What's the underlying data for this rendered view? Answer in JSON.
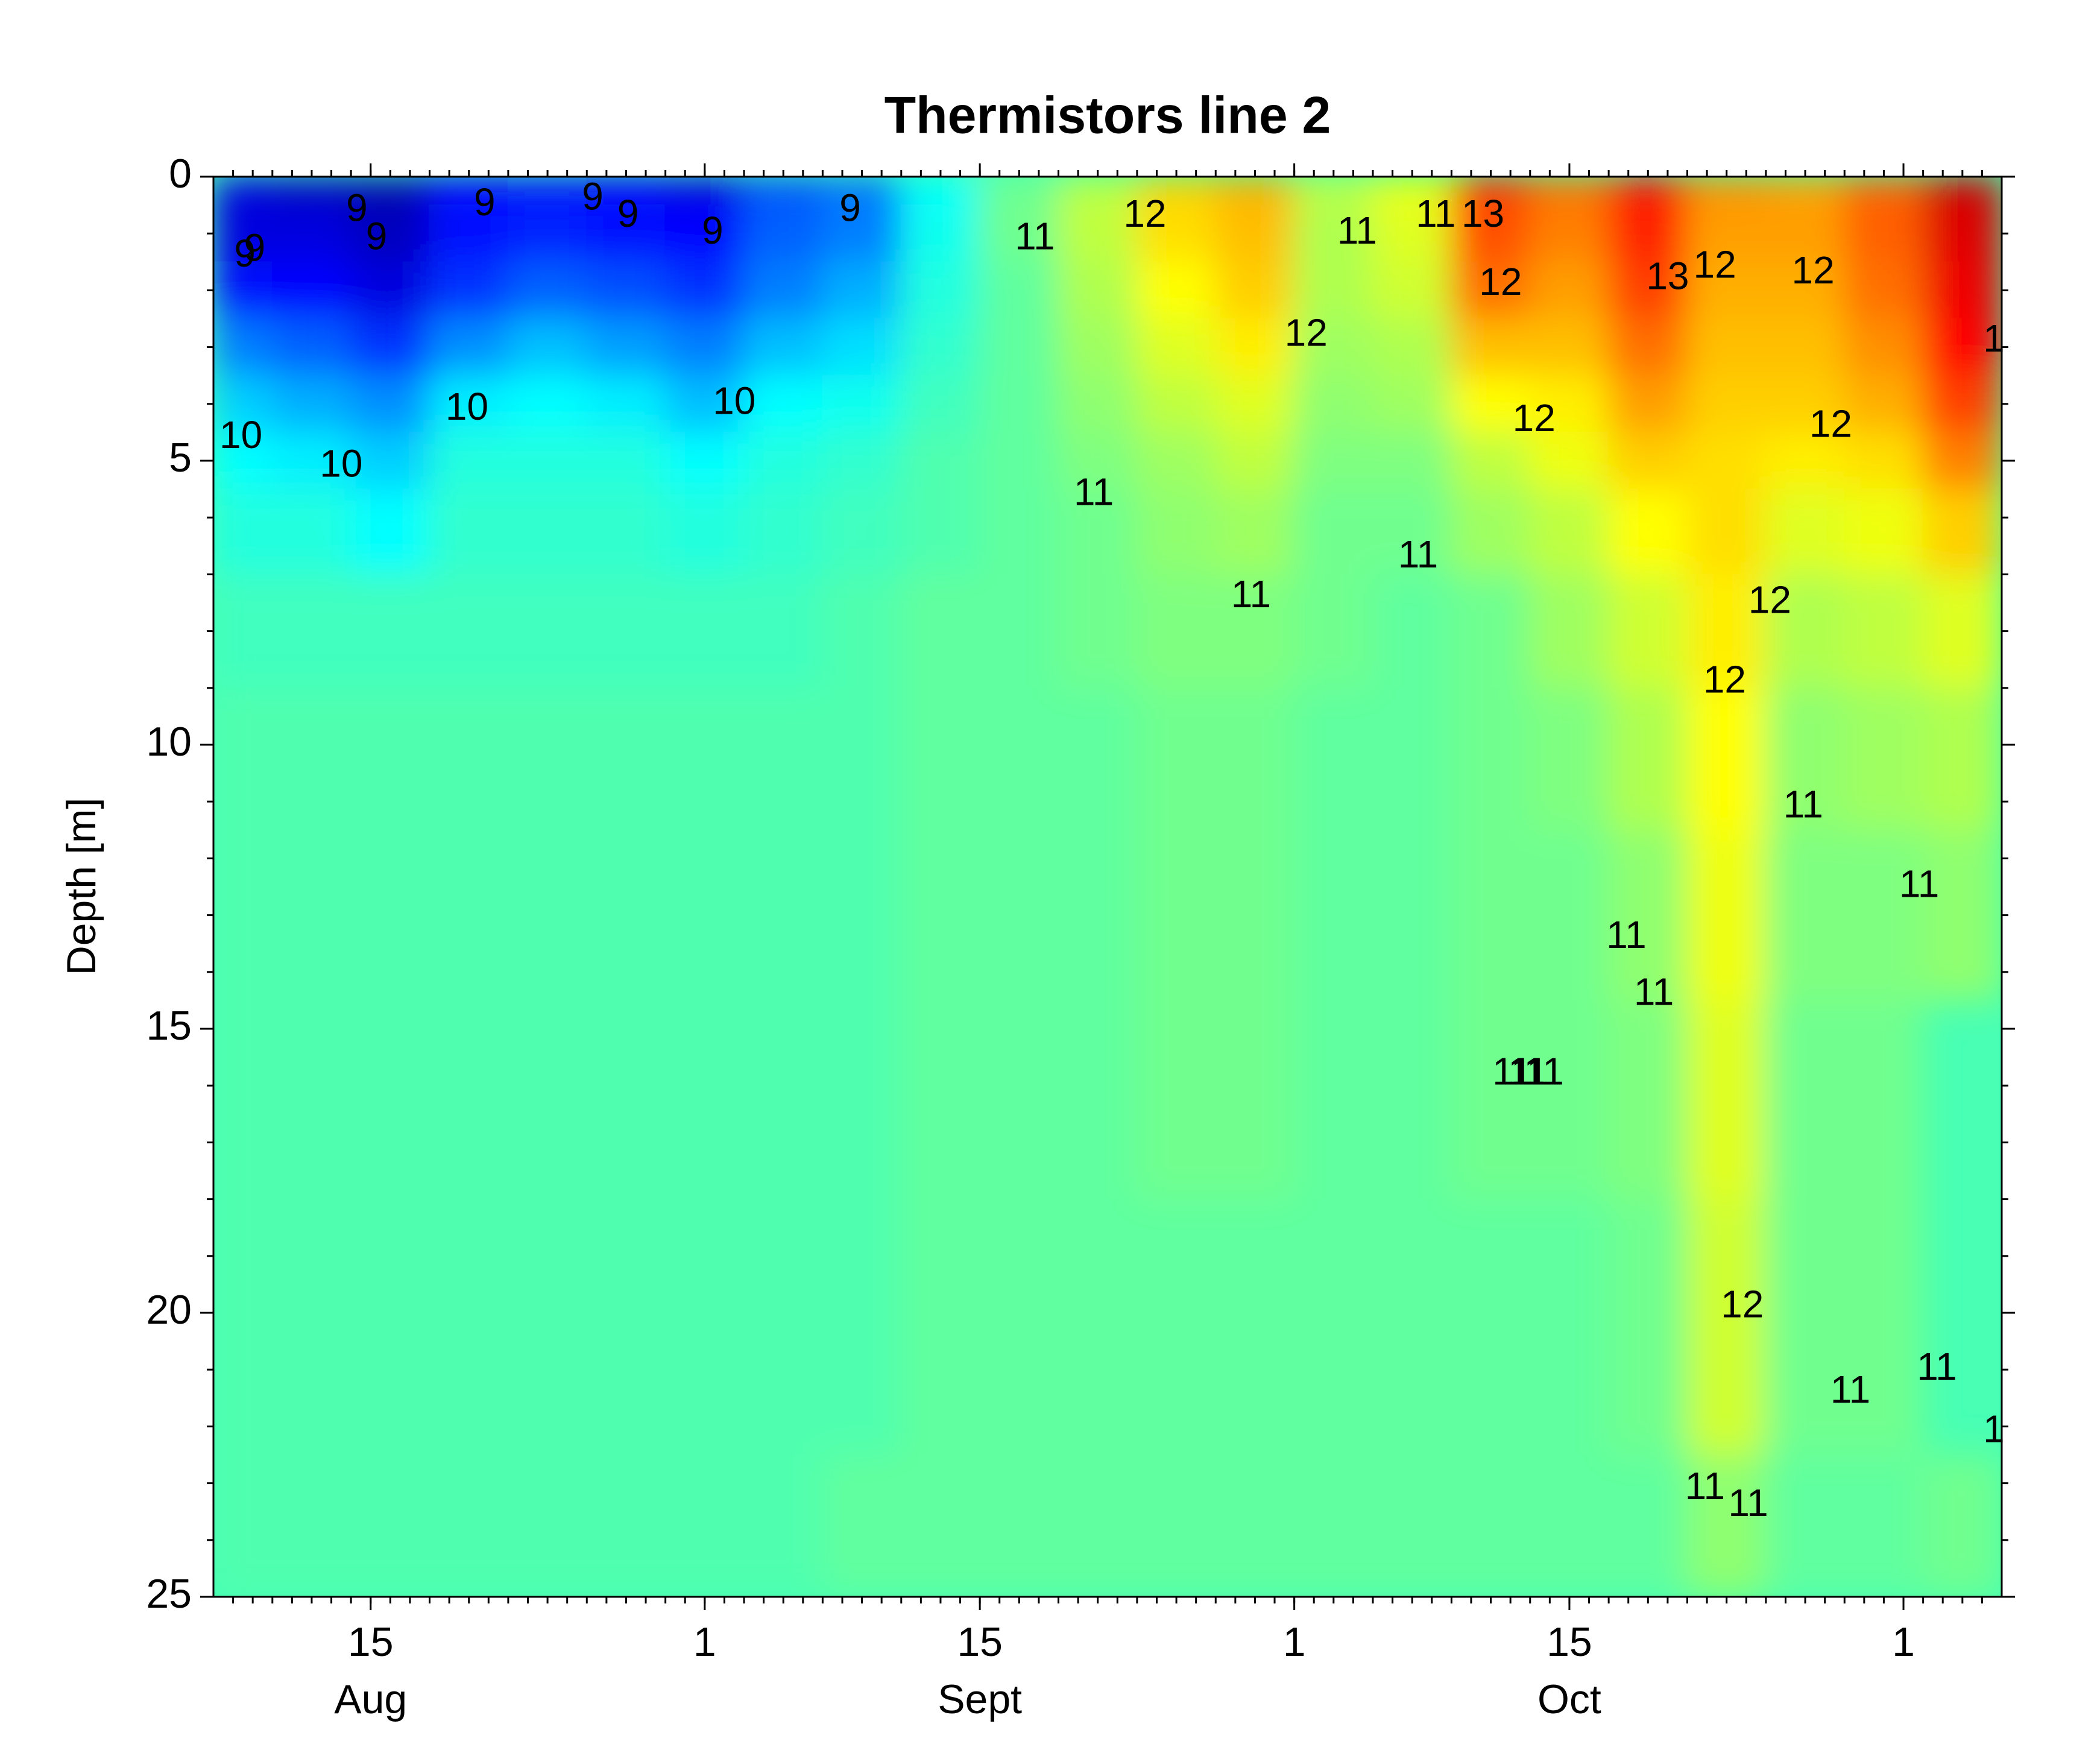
{
  "chart_data": {
    "type": "contour",
    "title": "Thermistors line 2",
    "ylabel": "Depth [m]",
    "colormap": "jet",
    "clim": [
      7.9,
      14.3
    ],
    "xlim": [
      219,
      310
    ],
    "ylim": [
      0,
      25
    ],
    "y_inverted": true,
    "xticks": [
      {
        "value": 227,
        "label": "15"
      },
      {
        "value": 244,
        "label": "1"
      },
      {
        "value": 258,
        "label": "15"
      },
      {
        "value": 274,
        "label": "1"
      },
      {
        "value": 288,
        "label": "15"
      },
      {
        "value": 305,
        "label": "1"
      }
    ],
    "month_ticks": [
      {
        "value": 227,
        "label": "Aug"
      },
      {
        "value": 258,
        "label": "Sept"
      },
      {
        "value": 288,
        "label": "Oct"
      }
    ],
    "yticks": [
      0,
      5,
      10,
      15,
      20,
      25
    ],
    "xminorticks": [
      220,
      221,
      222,
      223,
      224,
      225,
      226,
      227,
      228,
      229,
      230,
      231,
      232,
      233,
      234,
      235,
      236,
      237,
      238,
      239,
      240,
      241,
      242,
      243,
      244,
      245,
      246,
      247,
      248,
      249,
      250,
      251,
      252,
      253,
      254,
      255,
      256,
      257,
      258,
      259,
      260,
      261,
      262,
      263,
      264,
      265,
      266,
      267,
      268,
      269,
      270,
      271,
      272,
      273,
      274,
      275,
      276,
      277,
      278,
      279,
      280,
      281,
      282,
      283,
      284,
      285,
      286,
      287,
      288,
      289,
      290,
      291,
      292,
      293,
      294,
      295,
      296,
      297,
      298,
      299,
      300,
      301,
      302,
      303,
      304,
      305,
      306,
      307,
      308,
      309
    ],
    "yminorticks": [
      1,
      2,
      3,
      4,
      6,
      7,
      8,
      9,
      11,
      12,
      13,
      14,
      16,
      17,
      18,
      19,
      21,
      22,
      23,
      24
    ],
    "x": [
      220,
      224,
      228,
      232,
      236,
      240,
      244,
      248,
      252,
      256,
      260,
      264,
      268,
      272,
      276,
      280,
      284,
      288,
      292,
      296,
      300,
      304,
      308
    ],
    "depths": [
      0,
      1,
      2,
      3,
      4,
      5,
      6,
      8,
      10,
      13,
      16,
      20,
      25
    ],
    "z": [
      [
        8.5,
        8.3,
        8.2,
        8.7,
        8.8,
        8.7,
        8.5,
        9.2,
        9.4,
        10.3,
        11.0,
        11.5,
        12.2,
        12.4,
        11.5,
        11.8,
        13.2,
        12.8,
        13.4,
        12.6,
        12.5,
        12.9,
        13.8
      ],
      [
        8.5,
        8.5,
        8.3,
        8.8,
        8.9,
        8.8,
        8.7,
        9.3,
        9.5,
        10.4,
        11.0,
        11.5,
        12.1,
        12.3,
        11.4,
        11.7,
        13.0,
        12.7,
        13.3,
        12.5,
        12.5,
        12.9,
        13.7
      ],
      [
        8.8,
        8.7,
        8.5,
        9.0,
        9.3,
        9.2,
        9.0,
        9.5,
        9.8,
        10.5,
        10.9,
        11.4,
        11.9,
        12.2,
        11.4,
        11.6,
        12.8,
        12.5,
        13.1,
        12.4,
        12.4,
        12.8,
        13.6
      ],
      [
        9.5,
        9.3,
        9.0,
        9.6,
        9.9,
        9.7,
        9.5,
        9.9,
        10.1,
        10.6,
        10.9,
        11.3,
        11.7,
        12.0,
        11.3,
        11.4,
        12.3,
        12.3,
        12.8,
        12.3,
        12.3,
        12.6,
        13.5
      ],
      [
        10.0,
        9.8,
        9.6,
        10.2,
        10.3,
        10.2,
        9.9,
        10.3,
        10.4,
        10.7,
        10.9,
        11.2,
        11.5,
        11.7,
        11.2,
        11.3,
        11.9,
        12.0,
        12.5,
        12.2,
        12.2,
        12.4,
        13.1
      ],
      [
        10.3,
        10.2,
        10.0,
        10.5,
        10.5,
        10.5,
        10.3,
        10.5,
        10.6,
        10.8,
        10.9,
        11.1,
        11.3,
        11.5,
        11.1,
        11.1,
        11.5,
        11.8,
        12.2,
        12.1,
        12.0,
        12.1,
        12.7
      ],
      [
        10.5,
        10.5,
        10.3,
        10.6,
        10.6,
        10.6,
        10.5,
        10.6,
        10.7,
        10.8,
        10.9,
        11.0,
        11.2,
        11.3,
        11.0,
        11.0,
        11.3,
        11.5,
        11.9,
        12.1,
        11.7,
        11.8,
        12.2
      ],
      [
        10.7,
        10.7,
        10.7,
        10.7,
        10.7,
        10.7,
        10.7,
        10.7,
        10.8,
        10.9,
        10.9,
        11.0,
        11.1,
        11.1,
        11.0,
        10.9,
        11.0,
        11.3,
        11.6,
        12.0,
        11.4,
        11.5,
        11.7
      ],
      [
        10.8,
        10.8,
        10.8,
        10.8,
        10.8,
        10.8,
        10.8,
        10.8,
        10.8,
        10.9,
        10.9,
        10.9,
        11.0,
        11.0,
        10.9,
        10.9,
        11.0,
        11.1,
        11.4,
        11.9,
        11.2,
        11.3,
        11.4
      ],
      [
        10.8,
        10.8,
        10.8,
        10.8,
        10.8,
        10.8,
        10.8,
        10.8,
        10.8,
        10.9,
        10.9,
        10.9,
        11.0,
        11.0,
        10.9,
        10.9,
        11.0,
        11.0,
        11.2,
        11.8,
        11.1,
        11.1,
        11.2
      ],
      [
        10.8,
        10.8,
        10.8,
        10.8,
        10.8,
        10.8,
        10.8,
        10.8,
        10.8,
        10.9,
        10.9,
        10.9,
        11.0,
        11.0,
        10.9,
        10.9,
        11.0,
        11.0,
        11.1,
        11.7,
        11.0,
        11.0,
        null
      ],
      [
        10.8,
        10.8,
        10.8,
        10.8,
        10.8,
        10.8,
        10.8,
        10.8,
        10.8,
        10.9,
        10.9,
        10.9,
        10.9,
        10.9,
        10.9,
        10.9,
        10.9,
        10.9,
        11.0,
        11.6,
        11.0,
        11.0,
        null
      ],
      [
        10.8,
        10.8,
        10.8,
        10.8,
        10.8,
        10.8,
        10.8,
        10.8,
        10.9,
        10.9,
        10.9,
        10.9,
        10.9,
        10.9,
        10.9,
        10.9,
        10.9,
        10.9,
        10.9,
        11.2,
        10.9,
        10.9,
        11.0
      ]
    ],
    "contour_labels": {
      "x": [
        220.6,
        221.1,
        226.3,
        227.3,
        232.8,
        238.3,
        240.1,
        244.4,
        251.4,
        220.4,
        225.5,
        231.9,
        245.5,
        260.8,
        266.4,
        277.2,
        281.2,
        283.6,
        284.5,
        274.6,
        293.0,
        295.4,
        300.4,
        286.2,
        301.3,
        263.8,
        280.3,
        271.8,
        298.2,
        295.9,
        299.9,
        305.8,
        290.9,
        292.3,
        285.1,
        285.9,
        286.7,
        296.8,
        302.3,
        306.7,
        294.9,
        297.1,
        309.6,
        309.6
      ],
      "depth": [
        1.4,
        1.3,
        0.6,
        1.1,
        0.5,
        0.4,
        0.7,
        1.0,
        0.6,
        4.6,
        5.1,
        4.1,
        4.0,
        1.1,
        0.7,
        1.0,
        0.7,
        0.7,
        1.9,
        2.8,
        1.8,
        1.6,
        1.7,
        4.3,
        4.4,
        5.6,
        6.7,
        7.4,
        7.5,
        8.9,
        11.1,
        12.5,
        13.4,
        14.4,
        15.8,
        15.8,
        15.8,
        19.9,
        21.4,
        21.0,
        23.1,
        23.4,
        2.9,
        22.1
      ],
      "values": [
        9,
        9,
        9,
        9,
        9,
        9,
        9,
        9,
        9,
        10,
        10,
        10,
        10,
        11,
        12,
        11,
        11,
        13,
        12,
        12,
        13,
        12,
        12,
        12,
        12,
        11,
        11,
        11,
        12,
        12,
        11,
        11,
        11,
        11,
        11,
        11,
        11,
        12,
        11,
        11,
        11,
        11,
        1,
        1
      ]
    }
  }
}
